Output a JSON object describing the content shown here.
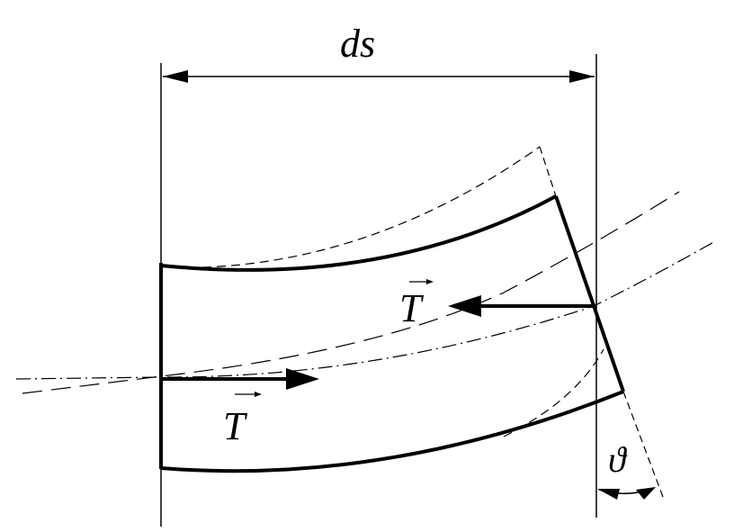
{
  "labels": {
    "dimension": "ds",
    "tension_right": "T",
    "tension_left": "T",
    "angle": "ϑ"
  },
  "colors": {
    "stroke": "#000000",
    "background": "#ffffff"
  }
}
